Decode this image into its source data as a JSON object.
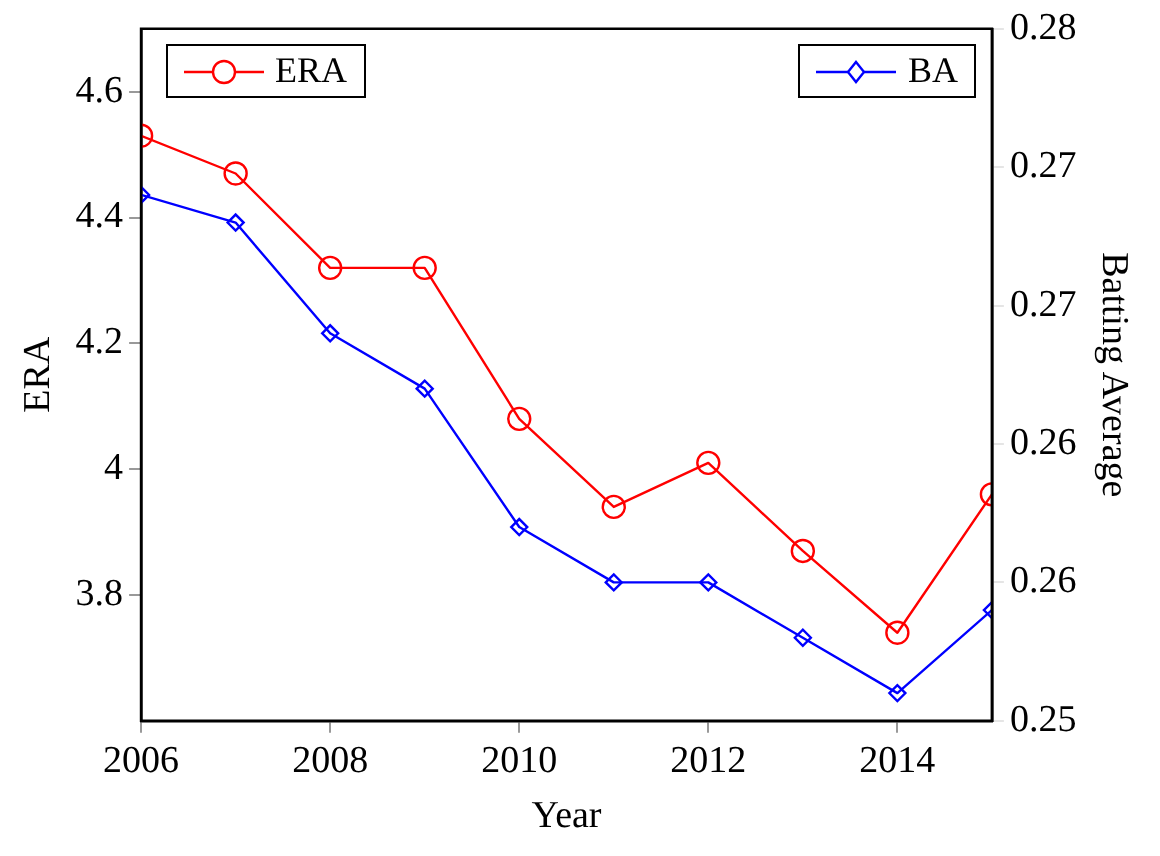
{
  "chart_data": {
    "type": "line",
    "xlabel": "Year",
    "ylabel": "ERA",
    "y2label": "Batting Average",
    "x": [
      2006,
      2007,
      2008,
      2009,
      2010,
      2011,
      2012,
      2013,
      2014,
      2015
    ],
    "xlim": [
      2006,
      2015
    ],
    "xticks": [
      2006,
      2008,
      2010,
      2012,
      2014
    ],
    "ylim": [
      3.6,
      4.7
    ],
    "yticks": [
      3.8,
      4,
      4.2,
      4.4,
      4.6
    ],
    "y2lim": [
      0.25,
      0.28
    ],
    "y2ticks": [
      {
        "value": 0.25,
        "label": "0.25"
      },
      {
        "value": 0.256,
        "label": "0.26"
      },
      {
        "value": 0.262,
        "label": "0.26"
      },
      {
        "value": 0.268,
        "label": "0.27"
      },
      {
        "value": 0.274,
        "label": "0.27"
      },
      {
        "value": 0.28,
        "label": "0.28"
      }
    ],
    "grid": false,
    "legend": "top",
    "series": [
      {
        "name": "ERA",
        "color": "#ff0000",
        "marker": "circle",
        "values": [
          4.53,
          4.47,
          4.32,
          4.32,
          4.08,
          3.94,
          4.01,
          3.87,
          3.74,
          3.96
        ]
      },
      {
        "name": "BA",
        "color": "#0000ff",
        "marker": "diamond",
        "axis": "y2",
        "values": [
          0.2728,
          0.2716,
          0.2668,
          0.2644,
          0.2584,
          0.256,
          0.256,
          0.2536,
          0.2512,
          0.2548
        ]
      }
    ]
  }
}
